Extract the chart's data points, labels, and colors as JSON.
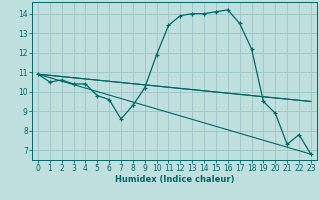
{
  "xlabel": "Humidex (Indice chaleur)",
  "bg_color": "#c0e0e0",
  "grid_color": "#a0c8c8",
  "line_color": "#006868",
  "xlim": [
    -0.5,
    23.5
  ],
  "ylim": [
    6.5,
    14.6
  ],
  "yticks": [
    7,
    8,
    9,
    10,
    11,
    12,
    13,
    14
  ],
  "xticks": [
    0,
    1,
    2,
    3,
    4,
    5,
    6,
    7,
    8,
    9,
    10,
    11,
    12,
    13,
    14,
    15,
    16,
    17,
    18,
    19,
    20,
    21,
    22,
    23
  ],
  "series1_x": [
    0,
    1,
    2,
    3,
    4,
    5,
    6,
    7,
    8,
    9,
    10,
    11,
    12,
    13,
    14,
    15,
    16,
    17,
    18,
    19,
    20,
    21,
    22,
    23
  ],
  "series1_y": [
    10.9,
    10.5,
    10.6,
    10.4,
    10.4,
    9.8,
    9.6,
    8.6,
    9.3,
    10.2,
    11.9,
    13.4,
    13.9,
    14.0,
    14.0,
    14.1,
    14.2,
    13.5,
    12.2,
    9.5,
    8.9,
    7.3,
    7.8,
    6.8
  ],
  "line2_x": [
    0,
    23
  ],
  "line2_y": [
    10.9,
    9.5
  ],
  "line3_x": [
    0,
    23
  ],
  "line3_y": [
    10.9,
    9.5
  ],
  "line4_x": [
    0,
    23
  ],
  "line4_y": [
    10.9,
    6.8
  ]
}
